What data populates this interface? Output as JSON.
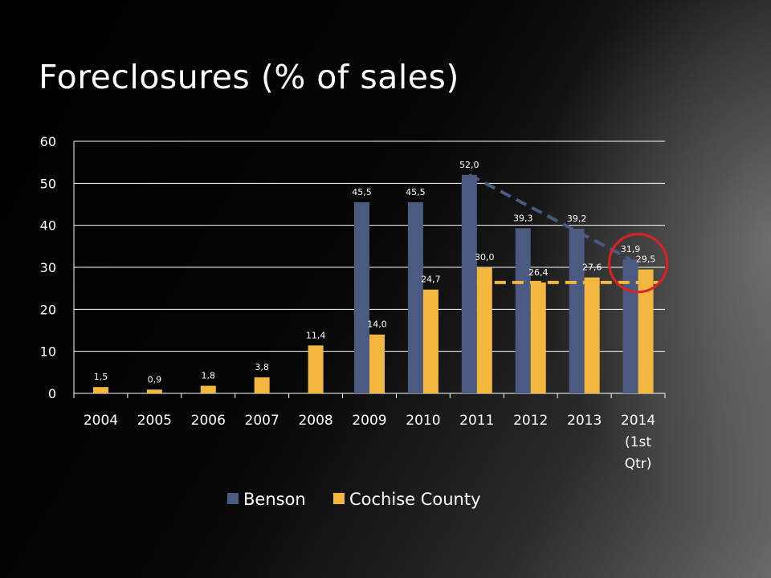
{
  "title": "Foreclosures (% of sales)",
  "chart_data": {
    "type": "bar",
    "title": "Foreclosures (% of sales)",
    "xlabel": "",
    "ylabel": "",
    "ylim": [
      0,
      60
    ],
    "yticks": [
      "0",
      "10",
      "20",
      "30",
      "40",
      "50",
      "60"
    ],
    "grid": true,
    "legend_position": "bottom",
    "categories": [
      [
        "2004"
      ],
      [
        "2005"
      ],
      [
        "2006"
      ],
      [
        "2007"
      ],
      [
        "2008"
      ],
      [
        "2009"
      ],
      [
        "2010"
      ],
      [
        "2011"
      ],
      [
        "2012"
      ],
      [
        "2013"
      ],
      [
        "2014",
        "(1st",
        "Qtr)"
      ]
    ],
    "series": [
      {
        "name": "Benson",
        "color": "#4a5a80",
        "values": [
          null,
          null,
          null,
          null,
          null,
          45.5,
          45.5,
          52.0,
          39.3,
          39.2,
          31.9
        ],
        "labels": [
          "",
          "",
          "",
          "",
          "",
          "45,5",
          "45,5",
          "52,0",
          "39,3",
          "39,2",
          "31,9"
        ]
      },
      {
        "name": "Cochise County",
        "color": "#f3b63f",
        "values": [
          1.5,
          0.9,
          1.8,
          3.8,
          11.4,
          14.0,
          24.7,
          30.0,
          26.4,
          27.6,
          29.5
        ],
        "labels": [
          "1,5",
          "0,9",
          "1,8",
          "3,8",
          "11,4",
          "14,0",
          "24,7",
          "30,0",
          "26,4",
          "27,6",
          "29,5"
        ]
      }
    ],
    "annotations": [
      {
        "type": "dashed-trend-line",
        "color": "#4a5a80",
        "from": {
          "category": "2011",
          "value": 52.0
        },
        "to": {
          "category": "2014 (1st Qtr)",
          "value": 31.9
        }
      },
      {
        "type": "dashed-horizontal-line",
        "color": "#f3b63f",
        "value": 26.4,
        "from_category": "2011",
        "to_category": "2014 (1st Qtr)"
      },
      {
        "type": "circle-highlight",
        "color": "#e02020",
        "category": "2014 (1st Qtr)"
      }
    ]
  }
}
